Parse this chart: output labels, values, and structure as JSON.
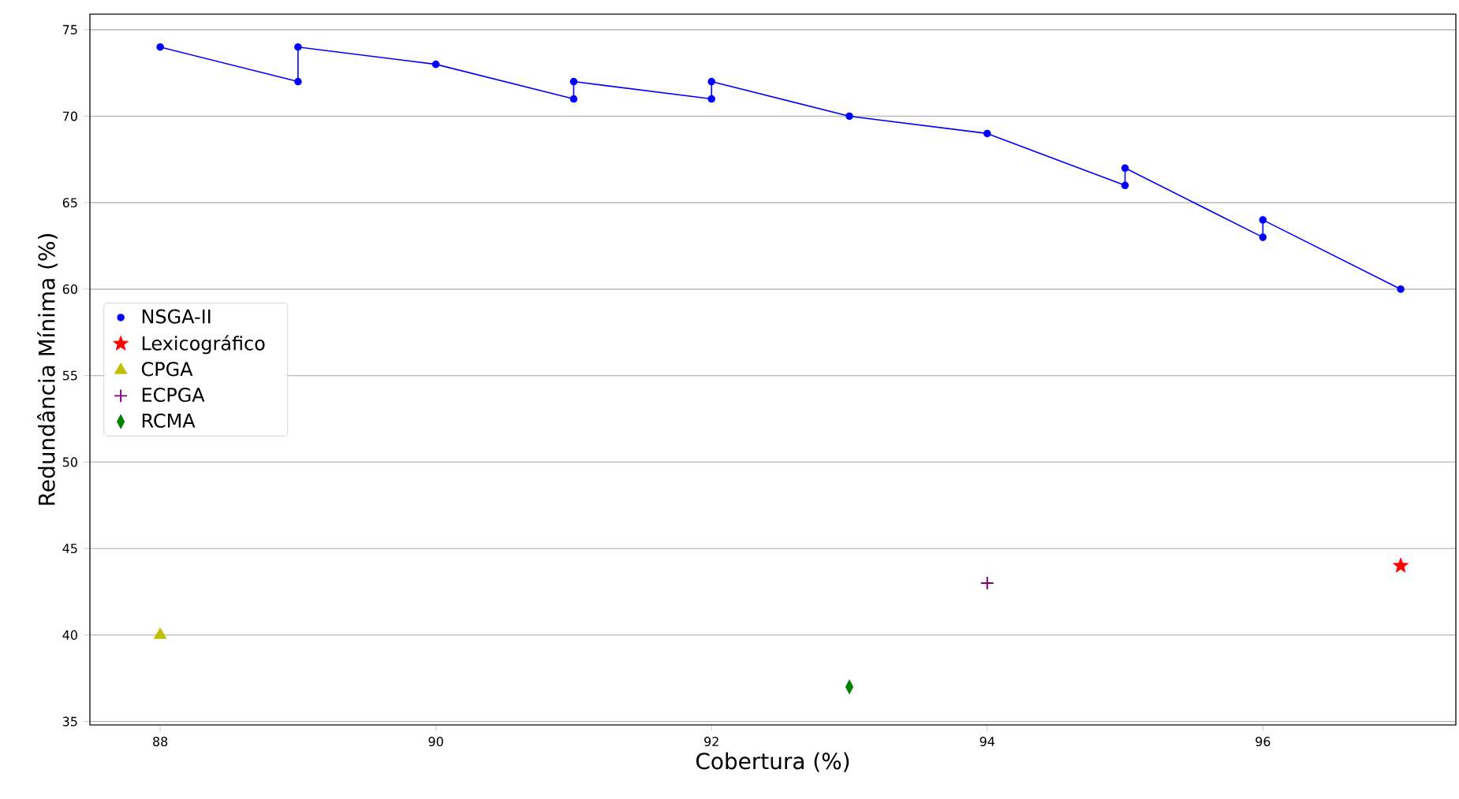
{
  "chart_data": {
    "type": "scatter",
    "xlabel": "Cobertura (%)",
    "ylabel": "Redundância Mínima (%)",
    "xlim": [
      87.49,
      97.4
    ],
    "ylim": [
      34.8,
      75.9
    ],
    "xticks": [
      88,
      90,
      92,
      94,
      96
    ],
    "yticks": [
      35,
      40,
      45,
      50,
      55,
      60,
      65,
      70,
      75
    ],
    "grid": "y",
    "legend": "left",
    "series": [
      {
        "name": "NSGA-II",
        "type": "line",
        "marker": "circle",
        "color": "#0000ff",
        "x": [
          88,
          89,
          89,
          90,
          91,
          91,
          92,
          92,
          93,
          94,
          95,
          95,
          96,
          96,
          97
        ],
        "values": [
          74,
          72,
          74,
          73,
          71,
          72,
          71,
          72,
          70,
          69,
          66,
          67,
          63,
          64,
          60
        ]
      },
      {
        "name": "Lexicográfico",
        "marker": "star",
        "color": "#ff0000",
        "x": [
          97
        ],
        "values": [
          44
        ]
      },
      {
        "name": "CPGA",
        "marker": "triangle",
        "color": "#bfbf00",
        "x": [
          88
        ],
        "values": [
          40
        ]
      },
      {
        "name": "ECPGA",
        "marker": "cross",
        "color": "#800080",
        "x": [
          94
        ],
        "values": [
          43
        ]
      },
      {
        "name": "RCMA",
        "marker": "diamond",
        "color": "#008000",
        "x": [
          93
        ],
        "values": [
          37
        ]
      }
    ]
  }
}
